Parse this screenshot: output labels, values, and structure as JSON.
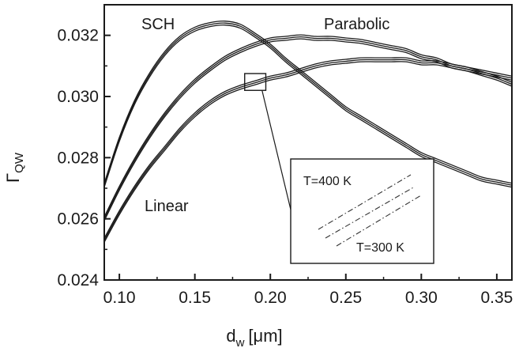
{
  "chart_data": {
    "type": "line",
    "xlabel": "d",
    "xlabel_sub": "w",
    "xlabel_unit": "[μm]",
    "ylabel": "Γ",
    "ylabel_sub": "QW",
    "xlim": [
      0.09,
      0.36
    ],
    "ylim": [
      0.024,
      0.033
    ],
    "x_ticks": [
      "0.10",
      "0.15",
      "0.20",
      "0.25",
      "0.30",
      "0.35"
    ],
    "x_tick_values": [
      0.1,
      0.15,
      0.2,
      0.25,
      0.3,
      0.35
    ],
    "y_ticks": [
      "0.024",
      "0.026",
      "0.028",
      "0.030",
      "0.032"
    ],
    "y_tick_values": [
      0.024,
      0.026,
      0.028,
      0.03,
      0.032
    ],
    "grid": false,
    "line_color": "#1a1a1a",
    "series": [
      {
        "name": "SCH",
        "x": [
          0.09,
          0.1,
          0.11,
          0.12,
          0.13,
          0.14,
          0.15,
          0.16,
          0.17,
          0.18,
          0.19,
          0.2,
          0.21,
          0.22,
          0.23,
          0.24,
          0.25,
          0.26,
          0.27,
          0.28,
          0.29,
          0.3,
          0.31,
          0.32,
          0.33,
          0.34,
          0.35,
          0.36
        ],
        "y": [
          0.0271,
          0.0286,
          0.0298,
          0.0307,
          0.0314,
          0.0319,
          0.0322,
          0.03235,
          0.0324,
          0.0323,
          0.032,
          0.03165,
          0.0312,
          0.0308,
          0.0304,
          0.03,
          0.0296,
          0.0293,
          0.029,
          0.0287,
          0.0284,
          0.0281,
          0.0279,
          0.0277,
          0.0275,
          0.0273,
          0.0272,
          0.0271
        ]
      },
      {
        "name": "Parabolic",
        "x": [
          0.09,
          0.1,
          0.11,
          0.12,
          0.13,
          0.14,
          0.15,
          0.16,
          0.17,
          0.18,
          0.19,
          0.2,
          0.21,
          0.22,
          0.23,
          0.24,
          0.25,
          0.26,
          0.27,
          0.28,
          0.29,
          0.3,
          0.31,
          0.32,
          0.33,
          0.34,
          0.35,
          0.36
        ],
        "y": [
          0.026,
          0.027,
          0.0279,
          0.0287,
          0.0294,
          0.03,
          0.0305,
          0.0309,
          0.03125,
          0.0315,
          0.0317,
          0.03185,
          0.0319,
          0.03195,
          0.0319,
          0.0319,
          0.03185,
          0.0318,
          0.0317,
          0.0316,
          0.0315,
          0.0313,
          0.0312,
          0.031,
          0.0309,
          0.03075,
          0.0306,
          0.0304
        ]
      },
      {
        "name": "Linear",
        "x": [
          0.09,
          0.1,
          0.11,
          0.12,
          0.13,
          0.14,
          0.15,
          0.16,
          0.17,
          0.18,
          0.19,
          0.2,
          0.21,
          0.22,
          0.23,
          0.24,
          0.25,
          0.26,
          0.27,
          0.28,
          0.29,
          0.3,
          0.31,
          0.32,
          0.33,
          0.34,
          0.35,
          0.36
        ],
        "y": [
          0.0253,
          0.0262,
          0.027,
          0.0277,
          0.0283,
          0.0289,
          0.0294,
          0.0298,
          0.0301,
          0.0303,
          0.03045,
          0.0306,
          0.0307,
          0.03085,
          0.031,
          0.0311,
          0.03115,
          0.0312,
          0.0312,
          0.0312,
          0.0312,
          0.0311,
          0.0311,
          0.031,
          0.0309,
          0.0308,
          0.0307,
          0.0306
        ]
      }
    ],
    "inset": {
      "label_top": "T=400 K",
      "label_bottom": "T=300 K",
      "zoom_region_x": [
        0.183,
        0.197
      ],
      "zoom_region_y": [
        0.0302,
        0.03075
      ]
    }
  }
}
